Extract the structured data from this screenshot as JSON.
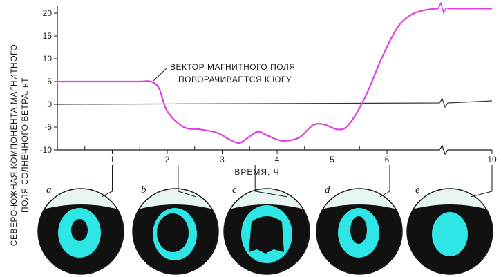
{
  "chart_data": {
    "type": "line",
    "ylabel_lines": [
      "СЕВЕРО-ЮЖНАЯ КОМПОНЕНТА МАГНИТНОГО",
      "ПОЛЯ СОЛНЕЧНОГО ВЕТРА, нТ"
    ],
    "xlabel": "ВРЕМЯ, Ч",
    "ylim": [
      -10,
      21
    ],
    "xlim": [
      0,
      10
    ],
    "yticks": [
      20,
      15,
      10,
      5,
      0,
      -5,
      -10
    ],
    "xtick_labels": [
      "1",
      "2",
      "3",
      "4",
      "5",
      "6",
      "10"
    ],
    "line_color": "#e040e0",
    "zero_line_color": "#333333",
    "annotation_lines": [
      "ВЕКТОР МАГНИТНОГО ПОЛЯ",
      "ПОВОРАЧИВАЕТСЯ К ЮГУ"
    ],
    "axis_break_between": [
      "6",
      "10"
    ],
    "series": [
      {
        "x": [
          0,
          0.5,
          1.0,
          1.5,
          1.7,
          1.85,
          2.0,
          2.3,
          2.6,
          2.9,
          3.1,
          3.3,
          3.45,
          3.65,
          3.85,
          4.1,
          4.4,
          4.65,
          4.85,
          5.1,
          5.3,
          5.6,
          5.9,
          6.2,
          6.5,
          6.9,
          7.2,
          10
        ],
        "y": [
          5,
          5,
          5,
          5,
          5,
          3.5,
          -1.5,
          -5,
          -5.5,
          -6.2,
          -7.5,
          -8.5,
          -7.5,
          -6,
          -7,
          -8,
          -7.3,
          -4.6,
          -4.4,
          -5.5,
          -4.5,
          1.5,
          10,
          17,
          20,
          21,
          21,
          21
        ]
      }
    ]
  },
  "panels": [
    {
      "letter": "a",
      "time_label": "1"
    },
    {
      "letter": "b",
      "time_label": "2"
    },
    {
      "letter": "c",
      "time_label": "3.5"
    },
    {
      "letter": "d",
      "time_label": "6"
    },
    {
      "letter": "e",
      "time_label": "10"
    }
  ],
  "colors": {
    "aurora": "#2fe6e6",
    "disk_dark": "#111111",
    "disk_light": "#e6f4f4"
  }
}
